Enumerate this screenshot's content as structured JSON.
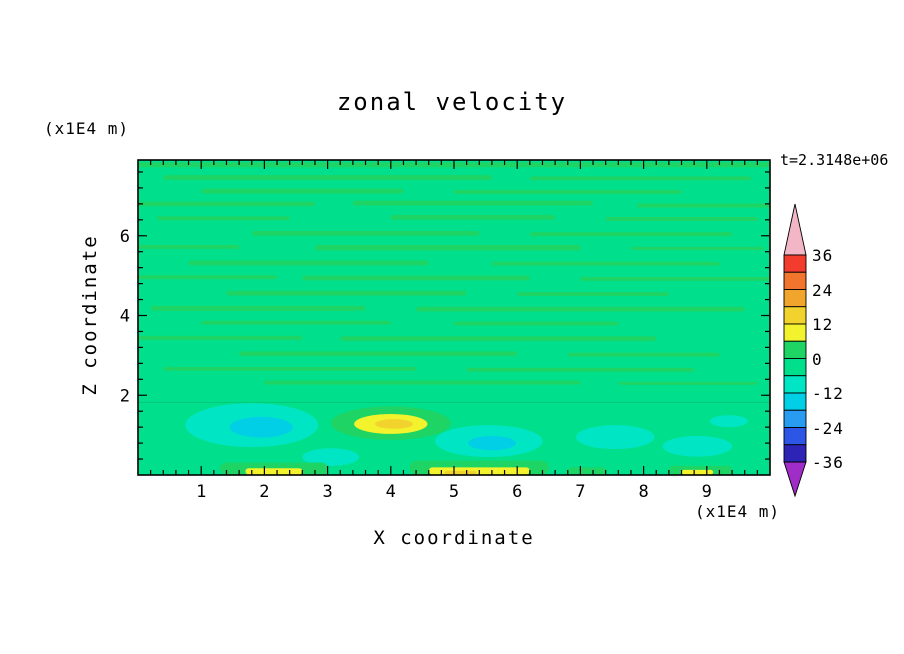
{
  "page": {
    "colors": {
      "background": "#FFFFFF",
      "axis": "#000000"
    }
  },
  "chart_data": {
    "type": "filled_contour",
    "title": "zonal velocity",
    "time_label": "t=2.3148e+06",
    "x_axis": {
      "label": "X coordinate",
      "units_label": "(x1E4 m)",
      "ticks": [
        1,
        2,
        3,
        4,
        5,
        6,
        7,
        8,
        9
      ],
      "range": [
        0,
        10
      ],
      "minor_step": 0.2
    },
    "z_axis": {
      "label": "Z coordinate",
      "units_label": "(x1E4 m)",
      "ticks": [
        2,
        4,
        6
      ],
      "range": [
        0,
        7.9
      ],
      "minor_step": 0.4
    },
    "colorbar": {
      "boundary_labels": [
        "36",
        "24",
        "12",
        "0",
        "-12",
        "-24",
        "-36"
      ],
      "levels": [
        36,
        30,
        24,
        18,
        12,
        6,
        0,
        -6,
        -12,
        -18,
        -24,
        -30,
        -36
      ],
      "band_colors_top_to_bottom": [
        "#F23C2D",
        "#F2752D",
        "#F2A52D",
        "#F2D22D",
        "#F2F22D",
        "#1ED464",
        "#00E08C",
        "#00E6C4",
        "#00CFE6",
        "#289CF0",
        "#2D55E6",
        "#2D23B4"
      ],
      "over_arrow_color": "#F2B6C6",
      "under_arrow_color": "#A02DC8"
    },
    "field": {
      "base_color": "#00E08C",
      "boundary_line": {
        "z": 1.82,
        "color": "#00C878"
      },
      "layers": [
        {
          "name": "green-streaks",
          "color": "#1ED464",
          "streaks": [
            [
              0.0,
              10,
              7.78,
              0.12
            ],
            [
              0.4,
              5.6,
              7.46,
              0.12
            ],
            [
              6.2,
              9.7,
              7.44,
              0.1
            ],
            [
              1.0,
              4.2,
              7.12,
              0.12
            ],
            [
              5.0,
              8.6,
              7.1,
              0.1
            ],
            [
              0.0,
              2.8,
              6.8,
              0.12
            ],
            [
              3.4,
              7.2,
              6.82,
              0.12
            ],
            [
              7.9,
              10,
              6.76,
              0.1
            ],
            [
              0.3,
              2.4,
              6.44,
              0.1
            ],
            [
              4.0,
              6.6,
              6.46,
              0.12
            ],
            [
              7.4,
              9.8,
              6.42,
              0.1
            ],
            [
              1.8,
              5.4,
              6.06,
              0.12
            ],
            [
              6.2,
              9.4,
              6.04,
              0.1
            ],
            [
              0.0,
              1.6,
              5.72,
              0.1
            ],
            [
              2.8,
              7.0,
              5.7,
              0.14
            ],
            [
              7.8,
              9.9,
              5.68,
              0.08
            ],
            [
              0.8,
              4.6,
              5.32,
              0.12
            ],
            [
              5.6,
              9.2,
              5.3,
              0.1
            ],
            [
              0.0,
              2.2,
              4.96,
              0.1
            ],
            [
              2.6,
              6.2,
              4.94,
              0.12
            ],
            [
              7.0,
              10,
              4.92,
              0.1
            ],
            [
              1.4,
              5.2,
              4.56,
              0.12
            ],
            [
              6.0,
              8.4,
              4.54,
              0.1
            ],
            [
              0.2,
              3.6,
              4.18,
              0.12
            ],
            [
              4.4,
              9.6,
              4.16,
              0.12
            ],
            [
              1.0,
              4.0,
              3.82,
              0.1
            ],
            [
              5.0,
              7.6,
              3.8,
              0.1
            ],
            [
              0.0,
              2.6,
              3.44,
              0.1
            ],
            [
              3.2,
              8.2,
              3.42,
              0.12
            ],
            [
              1.6,
              6.0,
              3.04,
              0.12
            ],
            [
              6.8,
              9.2,
              3.02,
              0.1
            ],
            [
              0.4,
              4.4,
              2.66,
              0.1
            ],
            [
              5.2,
              8.8,
              2.64,
              0.1
            ],
            [
              2.0,
              7.0,
              2.32,
              0.1
            ],
            [
              7.6,
              9.8,
              2.3,
              0.08
            ]
          ]
        },
        {
          "name": "aqua-blobs",
          "color": "#00E6C4",
          "blobs": [
            [
              1.8,
              1.25,
              1.05,
              0.55
            ],
            [
              5.55,
              0.85,
              0.85,
              0.4
            ],
            [
              7.55,
              0.95,
              0.62,
              0.3
            ],
            [
              8.85,
              0.72,
              0.55,
              0.26
            ],
            [
              9.35,
              1.35,
              0.3,
              0.15
            ],
            [
              3.05,
              0.45,
              0.45,
              0.22
            ]
          ]
        },
        {
          "name": "cyan-cores",
          "color": "#00CFE6",
          "blobs": [
            [
              1.95,
              1.2,
              0.5,
              0.26
            ],
            [
              5.6,
              0.8,
              0.38,
              0.18
            ]
          ]
        },
        {
          "name": "warm-blob-green",
          "color": "#1ED464",
          "blobs": [
            [
              4.0,
              1.3,
              0.95,
              0.42
            ]
          ]
        },
        {
          "name": "warm-blob-yellow",
          "color": "#F2F22D",
          "blobs": [
            [
              4.0,
              1.28,
              0.58,
              0.25
            ]
          ]
        },
        {
          "name": "warm-blob-gold",
          "color": "#F2D22D",
          "blobs": [
            [
              4.05,
              1.28,
              0.3,
              0.12
            ]
          ]
        },
        {
          "name": "bottom-green",
          "color": "#1ED464",
          "streaks": [
            [
              1.3,
              3.0,
              0.16,
              0.3
            ],
            [
              4.3,
              6.5,
              0.18,
              0.36
            ],
            [
              6.8,
              7.4,
              0.1,
              0.18
            ],
            [
              8.4,
              9.4,
              0.12,
              0.22
            ]
          ]
        },
        {
          "name": "bottom-yellow",
          "color": "#F2F22D",
          "streaks": [
            [
              1.7,
              2.6,
              0.09,
              0.16
            ],
            [
              4.6,
              6.2,
              0.1,
              0.18
            ],
            [
              8.6,
              9.1,
              0.07,
              0.12
            ]
          ]
        },
        {
          "name": "bottom-gold",
          "color": "#F2D22D",
          "streaks": [
            [
              4.85,
              5.35,
              0.06,
              0.09
            ]
          ]
        }
      ]
    },
    "sampled_field": {
      "x": [
        0.5,
        1.5,
        2.5,
        3.5,
        4.5,
        5.5,
        6.5,
        7.5,
        8.5,
        9.5
      ],
      "z": [
        7.5,
        6.5,
        5.5,
        4.5,
        3.5,
        2.5,
        1.5,
        0.5
      ],
      "u_rows_top_to_bottom": [
        [
          3,
          -3,
          3,
          -3,
          -3,
          3,
          -3,
          3,
          -3,
          3
        ],
        [
          -3,
          3,
          -3,
          3,
          -3,
          -3,
          3,
          -3,
          3,
          -3
        ],
        [
          3,
          -3,
          -3,
          3,
          3,
          -3,
          -3,
          3,
          -3,
          -3
        ],
        [
          -3,
          3,
          -3,
          -3,
          3,
          -3,
          3,
          -3,
          -3,
          3
        ],
        [
          -3,
          -3,
          3,
          -3,
          -3,
          3,
          -3,
          -3,
          3,
          -3
        ],
        [
          3,
          -3,
          -3,
          -3,
          3,
          -3,
          -3,
          3,
          -3,
          -3
        ],
        [
          -3,
          -9,
          -3,
          9,
          3,
          -9,
          -3,
          -9,
          -3,
          -9
        ],
        [
          -3,
          -9,
          3,
          9,
          -3,
          -9,
          3,
          -3,
          -9,
          3
        ]
      ]
    }
  }
}
